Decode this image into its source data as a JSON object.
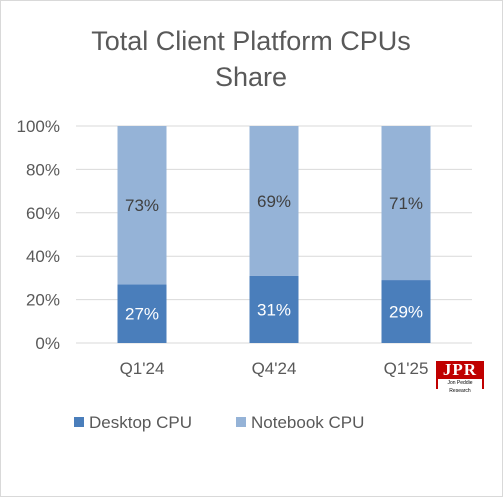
{
  "chart_data": {
    "type": "bar",
    "stacked": true,
    "percent_stacked": true,
    "title": "Total Client Platform CPUs Share",
    "title_lines": [
      "Total Client Platform CPUs",
      "Share"
    ],
    "categories": [
      "Q1'24",
      "Q4'24",
      "Q1'25"
    ],
    "series": [
      {
        "name": "Desktop CPU",
        "values": [
          27,
          31,
          29
        ],
        "labels": [
          "27%",
          "31%",
          "29%"
        ],
        "color": "#4a7ebb"
      },
      {
        "name": "Notebook CPU",
        "values": [
          73,
          69,
          71
        ],
        "labels": [
          "73%",
          "69%",
          "71%"
        ],
        "color": "#95b3d7"
      }
    ],
    "y_ticks": [
      "0%",
      "20%",
      "40%",
      "60%",
      "80%",
      "100%"
    ],
    "ylim": [
      0,
      100
    ],
    "grid": true,
    "legend_position": "bottom-left",
    "colors": {
      "grid": "#d9d9d9",
      "text": "#595959",
      "desktop_label": "#ffffff",
      "notebook_label": "#404040"
    }
  },
  "logo": {
    "main": "JPR",
    "sub": "Jon Peddie Research",
    "color": "#c00000"
  }
}
